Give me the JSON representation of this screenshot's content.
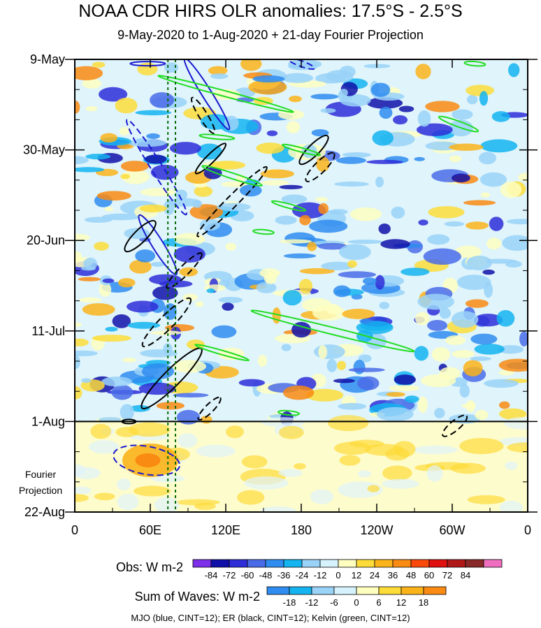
{
  "chart_data": {
    "type": "heatmap",
    "title": "NOAA CDR HIRS OLR anomalies: 17.5°S - 2.5°S",
    "subtitle": "9-May-2020 to 1-Aug-2020 + 21-day Fourier Projection",
    "x_ticks": [
      "0",
      "60E",
      "120E",
      "180",
      "120W",
      "60W",
      "0"
    ],
    "x_tick_values": [
      0,
      60,
      120,
      180,
      240,
      300,
      360
    ],
    "y_ticks": [
      "9-May",
      "30-May",
      "20-Jun",
      "11-Jul",
      "1-Aug",
      "22-Aug"
    ],
    "y_tick_values": [
      0,
      21,
      42,
      63,
      84,
      105
    ],
    "xlim": [
      0,
      360
    ],
    "ylim": [
      0,
      105
    ],
    "projection_label": [
      "Fourier",
      "Projection"
    ],
    "obs_start_line": 84,
    "obs_colorbar": {
      "label": "Obs: W m-2",
      "levels": [
        "-84",
        "-72",
        "-60",
        "-48",
        "-36",
        "-24",
        "-12",
        "0",
        "12",
        "24",
        "36",
        "48",
        "60",
        "72",
        "84"
      ],
      "colors": [
        "#7d2ee8",
        "#1010a8",
        "#2e2ed8",
        "#4a6be8",
        "#2f8cf0",
        "#14b4f0",
        "#9ad2f8",
        "#d6f2fc",
        "#fefec0",
        "#fddc3a",
        "#fbb31a",
        "#f98a12",
        "#f94a0c",
        "#e01010",
        "#b01818",
        "#882828",
        "#f06ec0"
      ]
    },
    "waves_colorbar": {
      "label": "Sum of Waves: W m-2",
      "levels": [
        "-18",
        "-12",
        "-6",
        "0",
        "6",
        "12",
        "18"
      ],
      "colors": [
        "#2f8cf0",
        "#14b4f0",
        "#9ad2f8",
        "#d6f2fc",
        "#fefec0",
        "#fddc3a",
        "#fbb31a",
        "#f98a12"
      ]
    },
    "vertical_lines_lon": [
      74,
      80
    ],
    "footer": "MJO (blue, CINT=12); ER (black, CINT=12); Kelvin (green, CINT=12)"
  }
}
